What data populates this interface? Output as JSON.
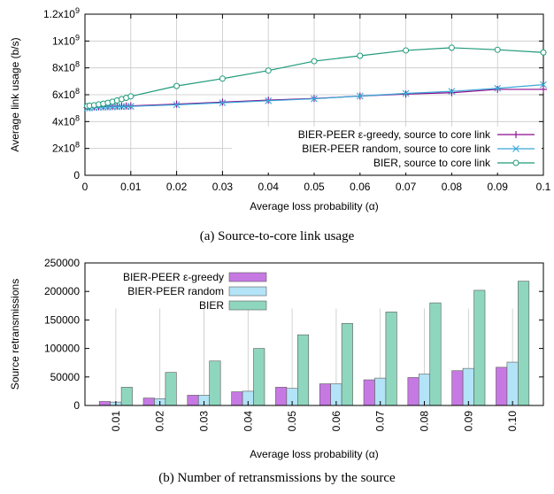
{
  "chart_data": [
    {
      "type": "line",
      "xlabel": "Average loss probability (α)",
      "ylabel": "Average link usage (b/s)",
      "xlim": [
        0,
        0.1
      ],
      "ylim": [
        0,
        1200000000
      ],
      "xticks": [
        "0",
        "0.01",
        "0.02",
        "0.03",
        "0.04",
        "0.05",
        "0.06",
        "0.07",
        "0.08",
        "0.09",
        "0.1"
      ],
      "yticks": [
        "0",
        "2x10",
        "4x10",
        "6x10",
        "8x10",
        "1x10",
        "1.2x10"
      ],
      "yticks_exp": [
        "",
        "8",
        "8",
        "8",
        "8",
        "9",
        "9"
      ],
      "legend_position": "bottom-right",
      "series": [
        {
          "name": "BIER-PEER ε-greedy, source to core link",
          "color": "#8b0b8b",
          "marker": "plus",
          "x": [
            0.0005,
            0.001,
            0.002,
            0.003,
            0.004,
            0.005,
            0.006,
            0.007,
            0.008,
            0.009,
            0.01,
            0.02,
            0.03,
            0.04,
            0.05,
            0.06,
            0.07,
            0.08,
            0.09,
            0.1
          ],
          "y": [
            505000000,
            507000000,
            509000000,
            510000000,
            511000000,
            512000000,
            513000000,
            514000000,
            515000000,
            516000000,
            517000000,
            530000000,
            545000000,
            560000000,
            572000000,
            590000000,
            605000000,
            615000000,
            640000000,
            640000000
          ]
        },
        {
          "name": "BIER-PEER random, source to core link",
          "color": "#3aa8d8",
          "marker": "cross",
          "x": [
            0.0005,
            0.001,
            0.002,
            0.003,
            0.004,
            0.005,
            0.006,
            0.007,
            0.008,
            0.009,
            0.01,
            0.02,
            0.03,
            0.04,
            0.05,
            0.06,
            0.07,
            0.08,
            0.09,
            0.1
          ],
          "y": [
            500000000,
            502000000,
            504000000,
            506000000,
            507000000,
            508000000,
            509000000,
            510000000,
            511000000,
            512000000,
            513000000,
            525000000,
            540000000,
            555000000,
            570000000,
            590000000,
            610000000,
            625000000,
            648000000,
            675000000
          ]
        },
        {
          "name": "BIER, source to core link",
          "color": "#1d9a78",
          "marker": "circle",
          "x": [
            0.0005,
            0.001,
            0.002,
            0.003,
            0.004,
            0.005,
            0.006,
            0.007,
            0.008,
            0.009,
            0.01,
            0.02,
            0.03,
            0.04,
            0.05,
            0.06,
            0.07,
            0.08,
            0.09,
            0.1
          ],
          "y": [
            515000000,
            518000000,
            522000000,
            528000000,
            533000000,
            540000000,
            548000000,
            557000000,
            567000000,
            577000000,
            588000000,
            665000000,
            720000000,
            780000000,
            850000000,
            890000000,
            930000000,
            950000000,
            935000000,
            915000000
          ]
        }
      ]
    },
    {
      "type": "bar",
      "xlabel": "Average loss probability (α)",
      "ylabel": "Source retransmissions",
      "ylim": [
        0,
        250000
      ],
      "yticks": [
        "0",
        "50000",
        "100000",
        "150000",
        "200000",
        "250000"
      ],
      "legend_position": "top-left",
      "categories": [
        "0.01",
        "0.02",
        "0.03",
        "0.04",
        "0.05",
        "0.06",
        "0.07",
        "0.08",
        "0.09",
        "0.10"
      ],
      "series": [
        {
          "name": "BIER-PEER ε-greedy",
          "color": "#c779e3",
          "values": [
            7000,
            13000,
            18000,
            24000,
            32000,
            38000,
            45000,
            49000,
            61000,
            67000
          ]
        },
        {
          "name": "BIER-PEER random",
          "color": "#b3e3f6",
          "values": [
            6000,
            12000,
            18000,
            25000,
            30000,
            38000,
            48000,
            55000,
            65000,
            76000
          ]
        },
        {
          "name": "BIER",
          "color": "#8fd6bf",
          "values": [
            32000,
            58000,
            78000,
            100000,
            124000,
            144000,
            164000,
            180000,
            202000,
            218000
          ]
        }
      ]
    }
  ],
  "captions": {
    "a": "(a) Source-to-core link usage",
    "b": "(b) Number of retransmissions by the source"
  }
}
